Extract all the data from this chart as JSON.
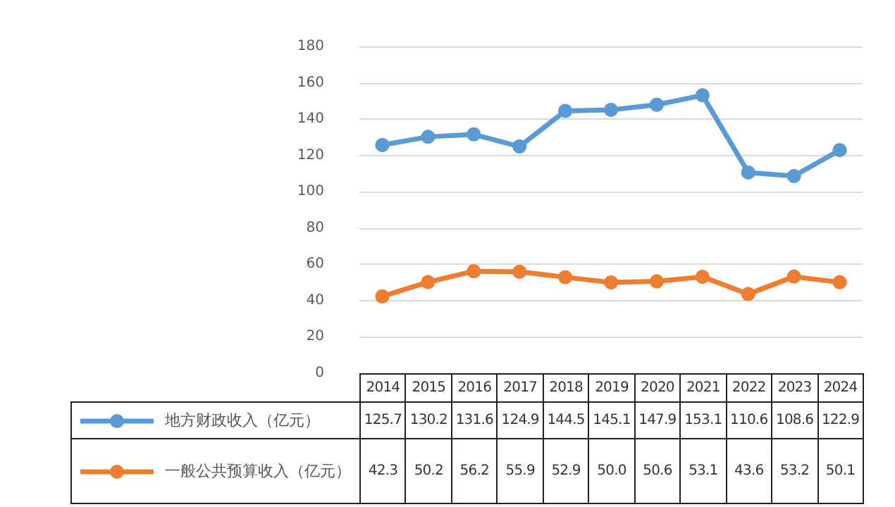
{
  "chart_data": {
    "type": "line",
    "categories": [
      "2014",
      "2015",
      "2016",
      "2017",
      "2018",
      "2019",
      "2020",
      "2021",
      "2022",
      "2023",
      "2024"
    ],
    "series": [
      {
        "name": "地方财政收入（亿元）",
        "color": "#5b9bd5",
        "values": [
          125.7,
          130.2,
          131.6,
          124.9,
          144.5,
          145.1,
          147.9,
          153.1,
          110.6,
          108.6,
          122.9
        ],
        "value_labels": [
          "125.7",
          "130.2",
          "131.6",
          "124.9",
          "144.5",
          "145.1",
          "147.9",
          "153.1",
          "110.6",
          "108.6",
          "122.9"
        ]
      },
      {
        "name": "一般公共预算收入（亿元）",
        "color": "#ed7d31",
        "values": [
          42.3,
          50.2,
          56.2,
          55.9,
          52.9,
          50.0,
          50.6,
          53.1,
          43.6,
          53.2,
          50.1
        ],
        "value_labels": [
          "42.3",
          "50.2",
          "56.2",
          "55.9",
          "52.9",
          "50.0",
          "50.6",
          "53.1",
          "43.6",
          "53.2",
          "50.1"
        ]
      }
    ],
    "ylim": [
      0,
      180
    ],
    "yticks": [
      0,
      20,
      40,
      60,
      80,
      100,
      120,
      140,
      160,
      180
    ],
    "grid": "y",
    "marker": "circle",
    "line_style": "solid",
    "legend": "bottom left"
  }
}
